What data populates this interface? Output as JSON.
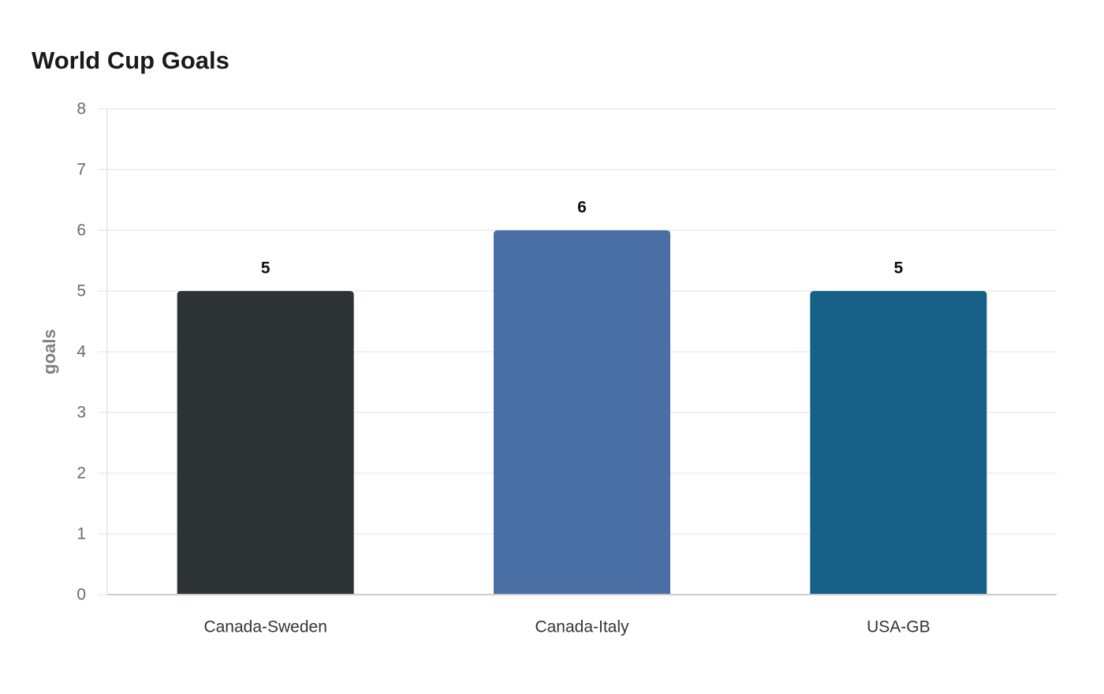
{
  "chart_data": {
    "type": "bar",
    "title": "World Cup Goals",
    "xlabel": "",
    "ylabel": "goals",
    "categories": [
      "Canada-Sweden",
      "Canada-Italy",
      "USA-GB"
    ],
    "values": [
      5,
      6,
      5
    ],
    "colors": [
      "#2e3436",
      "#4a6fa5",
      "#176087"
    ],
    "ylim": [
      0,
      8
    ],
    "yticks": [
      0,
      1,
      2,
      3,
      4,
      5,
      6,
      7,
      8
    ],
    "grid": true,
    "legend": "none",
    "data_labels": true
  }
}
